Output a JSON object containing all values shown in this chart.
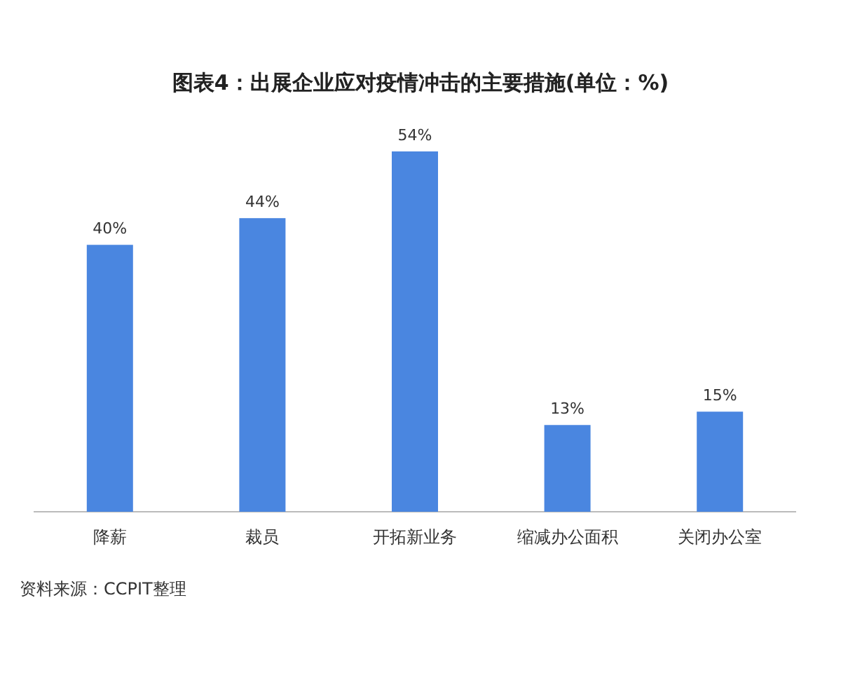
{
  "chart_data": {
    "type": "bar",
    "title": "图表4：出展企业应对疫情冲击的主要措施(单位：%)",
    "categories": [
      "降薪",
      "裁员",
      "开拓新业务",
      "缩减办公面积",
      "关闭办公室"
    ],
    "values": [
      40,
      44,
      54,
      13,
      15
    ],
    "value_labels": [
      "40%",
      "44%",
      "54%",
      "13%",
      "15%"
    ],
    "color": "#4a86e0",
    "annotations": [
      "资料来源：CCPIT整理"
    ]
  }
}
